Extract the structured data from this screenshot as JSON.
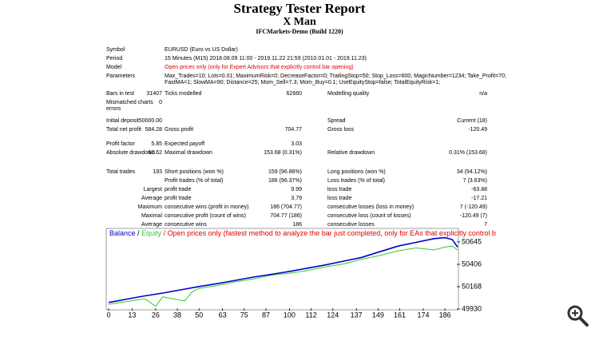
{
  "header": {
    "title": "Strategy Tester Report",
    "expert": "X Man",
    "server": "IFCMarkets-Demo (Build 1220)"
  },
  "table": {
    "rows": [
      {
        "label": "Symbol",
        "value2": "EURUSD (Euro vs US Dollar)"
      },
      {
        "label": "Period",
        "value2": "15 Minutes (M15) 2018.08.09 11:00 - 2019.11.22 21:59 (2010.01.01 - 2019.11.23)"
      },
      {
        "label": "Model",
        "value2": "Open prices only (only for Expert Advisors that explicitly control bar opening)"
      },
      {
        "label": "Parameters",
        "lines": [
          "Max_Trades=10; Lots=0.01; MaximumRisk=0; DecreaseFactor=0; TrailingStop=50; Stop_Loss=600; MagicNumber=1234; Take_Profit=70;",
          "FastMA=1; SlowMA=90; Distance=25; Mom_Sell=7.3; Mom_Buy=0.1; UseEquityStop=false; TotalEquityRisk=1;"
        ]
      },
      {
        "label": "Bars in test",
        "value": "31407",
        "label2": "Ticks modelled",
        "value2r": "62660",
        "label3": "Modelling quality",
        "value3": "n/a"
      },
      {
        "label": "Mismatched charts errors",
        "value": "0"
      },
      {
        "label": "Initial deposit",
        "value": "50000.00",
        "label3": "Spread",
        "value3": "Current (18)"
      },
      {
        "label": "Total net profit",
        "value": "584.28",
        "label2": "Gross profit",
        "value2r": "704.77",
        "label3": "Gross loss",
        "value3": "-120.49"
      },
      {
        "label": "Profit factor",
        "value": "5.85",
        "label2": "Expected payoff",
        "value2r": "3.03"
      },
      {
        "label": "Absolute drawdown",
        "value": "62.62",
        "label2": "Maximal drawdown",
        "value2r": "153.68 (0.31%)",
        "label3": "Relative drawdown",
        "value3": "0.31% (153.68)"
      },
      {
        "label": "Total trades",
        "value": "193",
        "label2": "Short positions (won %)",
        "value2r": "159 (96.86%)",
        "label3": "Long positions (won %)",
        "value3": "34 (94.12%)"
      },
      {
        "label2": "Profit trades (% of total)",
        "value2r": "186 (96.37%)",
        "label3": "Loss trades (% of total)",
        "value3": "7 (3.63%)"
      },
      {
        "value": "Largest",
        "label2": "profit trade",
        "value2r": "9.99",
        "label3": "loss trade",
        "value3": "-63.88"
      },
      {
        "value": "Average",
        "label2": "profit trade",
        "value2r": "3.79",
        "label3": "loss trade",
        "value3": "-17.21"
      },
      {
        "value": "Maximum",
        "label2": "consecutive wins (profit in money)",
        "value2r": "186 (704.77)",
        "label3": "consecutive losses (loss in money)",
        "value3": "7 (-120.49)"
      },
      {
        "value": "Maximal",
        "label2": "consecutive profit (count of wins)",
        "value2r": "704.77 (186)",
        "label3": "consecutive loss (count of losses)",
        "value3": "-120.49 (7)"
      },
      {
        "value": "Average",
        "label2": "consecutive wins",
        "value2r": "186",
        "label3": "consecutive losses",
        "value3": "7"
      }
    ]
  },
  "chart_data": {
    "type": "line",
    "legend": {
      "separator": "/",
      "note": "Open prices only (fastest method to analyze the bar just completed, only for EAs that explicitly control b"
    },
    "series": [
      {
        "name": "Balance",
        "color": "#0000c8",
        "x": [
          0,
          10,
          20,
          30,
          40,
          50,
          60,
          70,
          80,
          90,
          100,
          110,
          120,
          130,
          140,
          150,
          160,
          170,
          180,
          186,
          190,
          193
        ],
        "values": [
          50000,
          50035,
          50070,
          50100,
          50135,
          50170,
          50200,
          50235,
          50270,
          50300,
          50330,
          50365,
          50400,
          50440,
          50480,
          50540,
          50600,
          50640,
          50680,
          50690,
          50670,
          50590
        ]
      },
      {
        "name": "Equity",
        "color": "#32c832",
        "x": [
          0,
          10,
          20,
          26,
          30,
          38,
          42,
          46,
          50,
          60,
          70,
          80,
          90,
          100,
          110,
          120,
          130,
          140,
          150,
          160,
          170,
          180,
          186,
          190,
          193
        ],
        "values": [
          49980,
          50010,
          50040,
          49960,
          50060,
          50030,
          50015,
          50110,
          50150,
          50180,
          50220,
          50250,
          50290,
          50310,
          50340,
          50380,
          50410,
          50460,
          50500,
          50550,
          50580,
          50560,
          50590,
          50600,
          50560
        ]
      }
    ],
    "xlim": [
      0,
      193
    ],
    "xticks": [
      0,
      13,
      26,
      38,
      50,
      63,
      75,
      87,
      100,
      112,
      124,
      137,
      149,
      161,
      174,
      186
    ],
    "ylim": [
      49930,
      50780
    ],
    "yticks": [
      49930,
      50168,
      50406,
      50645
    ]
  }
}
